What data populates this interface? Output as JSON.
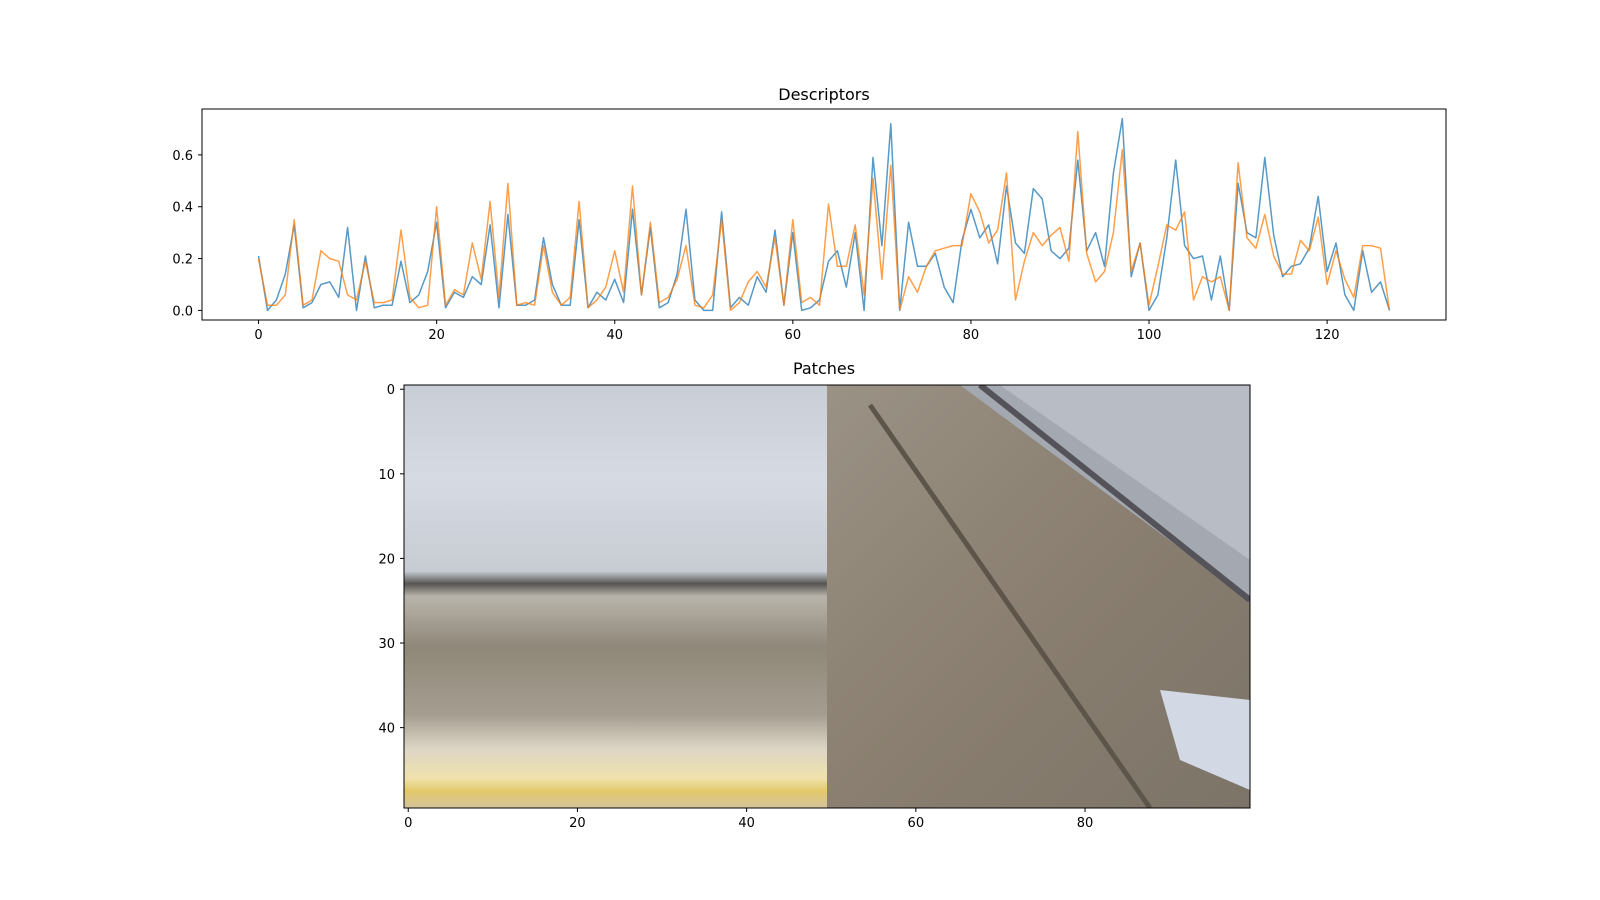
{
  "chart_data": [
    {
      "type": "line",
      "title": "Descriptors",
      "xlabel": "",
      "ylabel": "",
      "xlim": [
        -6.35,
        133.35
      ],
      "ylim": [
        -0.037,
        0.777
      ],
      "x_ticks": [
        0,
        20,
        40,
        60,
        80,
        100,
        120
      ],
      "y_ticks": [
        0.0,
        0.2,
        0.4,
        0.6
      ],
      "y_tick_labels": [
        "0.0",
        "0.2",
        "0.4",
        "0.6"
      ],
      "grid": false,
      "series": [
        {
          "color": "#1f77b4",
          "values": [
            0.21,
            0.0,
            0.04,
            0.14,
            0.33,
            0.01,
            0.03,
            0.1,
            0.11,
            0.05,
            0.32,
            0.0,
            0.21,
            0.01,
            0.02,
            0.02,
            0.19,
            0.03,
            0.06,
            0.15,
            0.34,
            0.01,
            0.07,
            0.05,
            0.13,
            0.1,
            0.33,
            0.01,
            0.37,
            0.02,
            0.02,
            0.04,
            0.28,
            0.1,
            0.02,
            0.02,
            0.35,
            0.01,
            0.07,
            0.04,
            0.12,
            0.03,
            0.39,
            0.06,
            0.32,
            0.01,
            0.03,
            0.14,
            0.39,
            0.04,
            0.0,
            0.0,
            0.38,
            0.01,
            0.05,
            0.02,
            0.13,
            0.07,
            0.31,
            0.02,
            0.3,
            0.0,
            0.01,
            0.04,
            0.19,
            0.23,
            0.09,
            0.3,
            0.0,
            0.59,
            0.25,
            0.72,
            0.0,
            0.34,
            0.17,
            0.17,
            0.22,
            0.09,
            0.03,
            0.27,
            0.39,
            0.28,
            0.33,
            0.18,
            0.48,
            0.26,
            0.22,
            0.47,
            0.43,
            0.23,
            0.2,
            0.24,
            0.58,
            0.23,
            0.3,
            0.17,
            0.53,
            0.74,
            0.13,
            0.26,
            0.0,
            0.06,
            0.28,
            0.58,
            0.25,
            0.2,
            0.21,
            0.04,
            0.21,
            0.0,
            0.49,
            0.3,
            0.28,
            0.59,
            0.29,
            0.13,
            0.17,
            0.18,
            0.24,
            0.44,
            0.15,
            0.26,
            0.06,
            0.0,
            0.23,
            0.07,
            0.11,
            0.0
          ]
        },
        {
          "color": "#ff7f0e",
          "values": [
            0.2,
            0.02,
            0.02,
            0.06,
            0.35,
            0.02,
            0.04,
            0.23,
            0.2,
            0.19,
            0.06,
            0.04,
            0.19,
            0.03,
            0.03,
            0.04,
            0.31,
            0.05,
            0.01,
            0.02,
            0.4,
            0.02,
            0.08,
            0.06,
            0.26,
            0.12,
            0.42,
            0.05,
            0.49,
            0.02,
            0.03,
            0.02,
            0.25,
            0.07,
            0.02,
            0.05,
            0.42,
            0.01,
            0.04,
            0.09,
            0.23,
            0.07,
            0.48,
            0.06,
            0.34,
            0.03,
            0.05,
            0.12,
            0.25,
            0.02,
            0.01,
            0.06,
            0.35,
            0.0,
            0.03,
            0.11,
            0.15,
            0.09,
            0.28,
            0.02,
            0.35,
            0.03,
            0.05,
            0.02,
            0.41,
            0.17,
            0.17,
            0.33,
            0.06,
            0.51,
            0.12,
            0.56,
            0.0,
            0.13,
            0.07,
            0.17,
            0.23,
            0.24,
            0.25,
            0.25,
            0.45,
            0.38,
            0.26,
            0.31,
            0.53,
            0.04,
            0.19,
            0.3,
            0.25,
            0.29,
            0.32,
            0.19,
            0.69,
            0.22,
            0.11,
            0.15,
            0.3,
            0.62,
            0.15,
            0.26,
            0.02,
            0.17,
            0.33,
            0.31,
            0.38,
            0.04,
            0.13,
            0.11,
            0.13,
            0.0,
            0.57,
            0.28,
            0.24,
            0.37,
            0.21,
            0.14,
            0.14,
            0.27,
            0.23,
            0.36,
            0.1,
            0.23,
            0.12,
            0.05,
            0.25,
            0.25,
            0.24,
            0.0
          ]
        }
      ]
    },
    {
      "type": "heatmap",
      "title": "Patches",
      "xlabel": "",
      "ylabel": "",
      "x_ticks": [
        0,
        20,
        40,
        60,
        80
      ],
      "y_ticks": [
        0,
        10,
        20,
        30,
        40
      ],
      "extent_cols": 100,
      "extent_rows": 50,
      "grid": false
    }
  ]
}
